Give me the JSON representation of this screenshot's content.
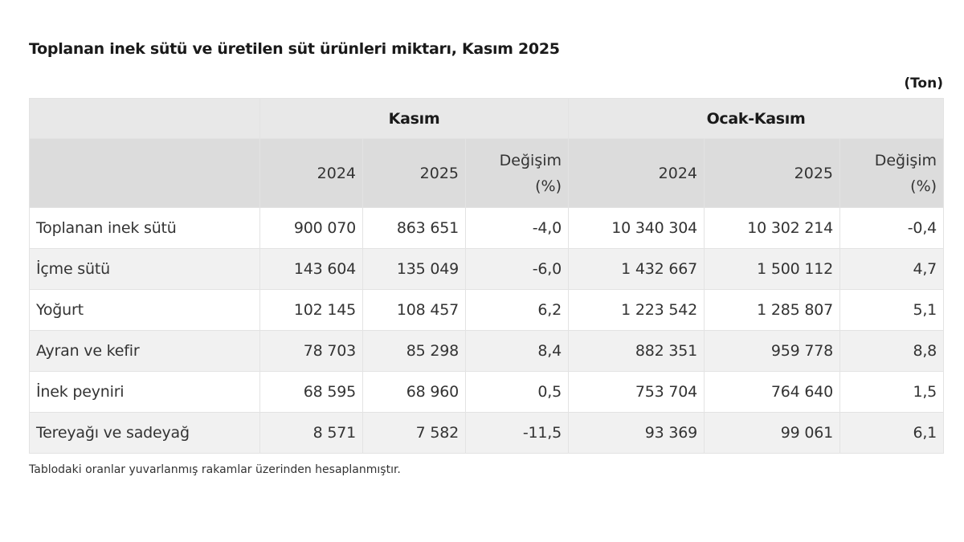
{
  "title": "Toplanan inek sütü ve üretilen süt ürünleri miktarı, Kasım 2025",
  "unit": "(Ton)",
  "table": {
    "groups": [
      {
        "label": "",
        "span": 1
      },
      {
        "label": "Kasım",
        "span": 3
      },
      {
        "label": "Ocak-Kasım",
        "span": 3
      }
    ],
    "subheaders": [
      "",
      "2024",
      "2025",
      "Değişim\n(%)",
      "2024",
      "2025",
      "Değişim\n(%)"
    ],
    "subheader_lines": {
      "kasim_2024": "2024",
      "kasim_2025": "2025",
      "kasim_change_line1": "Değişim",
      "kasim_change_line2": "(%)",
      "ocak_kasim_2024": "2024",
      "ocak_kasim_2025": "2025",
      "ocak_kasim_change_line1": "Değişim",
      "ocak_kasim_change_line2": "(%)"
    },
    "rows": [
      {
        "label": "Toplanan inek sütü",
        "kasim_2024": "900 070",
        "kasim_2025": "863 651",
        "kasim_change": "-4,0",
        "ok_2024": "10 340 304",
        "ok_2025": "10 302 214",
        "ok_change": "-0,4"
      },
      {
        "label": "İçme sütü",
        "kasim_2024": "143 604",
        "kasim_2025": "135 049",
        "kasim_change": "-6,0",
        "ok_2024": "1 432 667",
        "ok_2025": "1 500 112",
        "ok_change": "4,7"
      },
      {
        "label": "Yoğurt",
        "kasim_2024": "102 145",
        "kasim_2025": "108 457",
        "kasim_change": "6,2",
        "ok_2024": "1 223 542",
        "ok_2025": "1 285 807",
        "ok_change": "5,1"
      },
      {
        "label": "Ayran ve kefir",
        "kasim_2024": "78 703",
        "kasim_2025": "85 298",
        "kasim_change": "8,4",
        "ok_2024": "882 351",
        "ok_2025": "959 778",
        "ok_change": "8,8"
      },
      {
        "label": "İnek peyniri",
        "kasim_2024": "68 595",
        "kasim_2025": "68 960",
        "kasim_change": "0,5",
        "ok_2024": "753 704",
        "ok_2025": "764 640",
        "ok_change": "1,5"
      },
      {
        "label": "Tereyağı ve sadeyağ",
        "kasim_2024": "8 571",
        "kasim_2025": "7 582",
        "kasim_change": "-11,5",
        "ok_2024": "93 369",
        "ok_2025": "99 061",
        "ok_change": "6,1"
      }
    ]
  },
  "footnote": "Tablodaki oranlar yuvarlanmış rakamlar üzerinden hesaplanmıştır.",
  "colors": {
    "group_header_bg": "#e8e8e8",
    "sub_header_bg": "#dcdcdc",
    "row_alt_bg": "#f1f1f1",
    "border": "#e3e3e3"
  }
}
